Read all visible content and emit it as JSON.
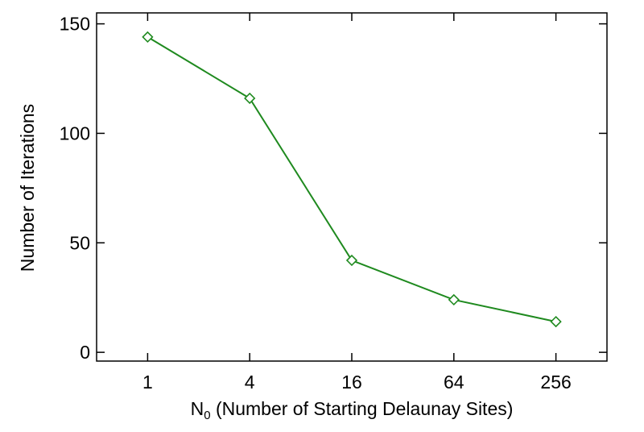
{
  "chart_data": {
    "type": "line",
    "title": "",
    "xlabel": {
      "base": "N",
      "subscript": "0",
      "rest": " (Number of Starting Delaunay Sites)"
    },
    "ylabel": "Number of Iterations",
    "x_scale": "log",
    "x": [
      1,
      4,
      16,
      64,
      256
    ],
    "x_tick_labels": [
      "1",
      "4",
      "16",
      "64",
      "256"
    ],
    "xlim": [
      0.5,
      512
    ],
    "y_ticks": [
      0,
      50,
      100,
      150
    ],
    "y_tick_labels": [
      "0",
      "50",
      "100",
      "150"
    ],
    "ylim": [
      -4,
      155
    ],
    "grid": false,
    "series": [
      {
        "values": [
          144,
          116,
          42,
          24,
          14
        ],
        "color": "#1f8a1f",
        "marker": "diamond"
      }
    ]
  }
}
